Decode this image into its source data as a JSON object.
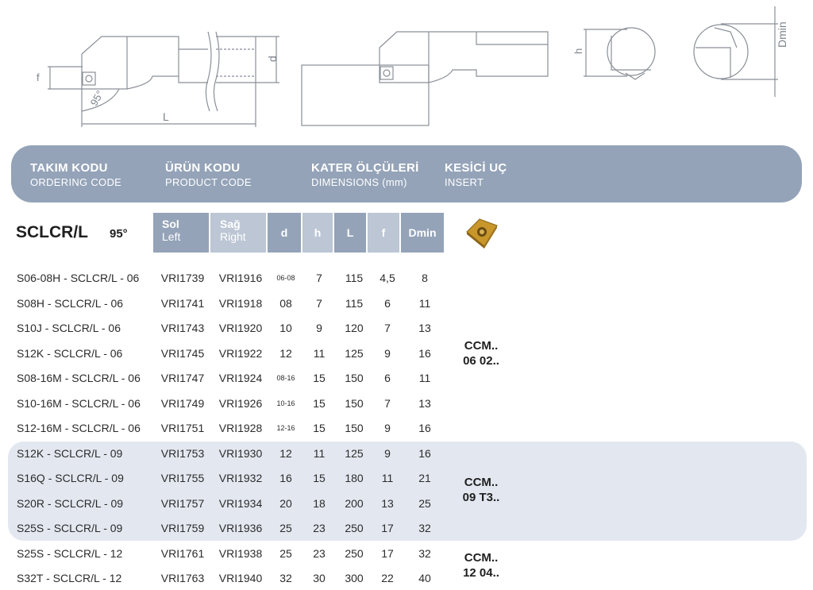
{
  "diagram": {
    "labels": {
      "f": "f",
      "angle": "95°",
      "L": "L",
      "d": "d",
      "h": "h",
      "dmin": "Dmin"
    }
  },
  "header": {
    "cols": [
      {
        "tr": "TAKIM KODU",
        "en": "ORDERING CODE"
      },
      {
        "tr": "ÜRÜN KODU",
        "en": "PRODUCT CODE"
      },
      {
        "tr": "KATER ÖLÇÜLERİ",
        "en": "DIMENSIONS (mm)"
      },
      {
        "tr": "KESİCİ UÇ",
        "en": "INSERT"
      }
    ]
  },
  "table": {
    "model": "SCLCR/L",
    "angle": "95°",
    "columns": {
      "sol": {
        "tr": "Sol",
        "en": "Left"
      },
      "sag": {
        "tr": "Sağ",
        "en": "Right"
      },
      "d": "d",
      "h": "h",
      "L": "L",
      "f": "f",
      "dmin": "Dmin"
    },
    "rows": [
      {
        "code": "S06-08H - SCLCR/L - 06",
        "sol": "VRI1739",
        "sag": "VRI1916",
        "d": "06-08",
        "h": "7",
        "L": "115",
        "f": "4,5",
        "dmin": "8"
      },
      {
        "code": "S08H - SCLCR/L - 06",
        "sol": "VRI1741",
        "sag": "VRI1918",
        "d": "08",
        "h": "7",
        "L": "115",
        "f": "6",
        "dmin": "11"
      },
      {
        "code": "S10J - SCLCR/L - 06",
        "sol": "VRI1743",
        "sag": "VRI1920",
        "d": "10",
        "h": "9",
        "L": "120",
        "f": "7",
        "dmin": "13"
      },
      {
        "code": "S12K - SCLCR/L - 06",
        "sol": "VRI1745",
        "sag": "VRI1922",
        "d": "12",
        "h": "11",
        "L": "125",
        "f": "9",
        "dmin": "16"
      },
      {
        "code": "S08-16M - SCLCR/L - 06",
        "sol": "VRI1747",
        "sag": "VRI1924",
        "d": "08-16",
        "h": "15",
        "L": "150",
        "f": "6",
        "dmin": "11"
      },
      {
        "code": "S10-16M - SCLCR/L - 06",
        "sol": "VRI1749",
        "sag": "VRI1926",
        "d": "10-16",
        "h": "15",
        "L": "150",
        "f": "7",
        "dmin": "13"
      },
      {
        "code": "S12-16M - SCLCR/L - 06",
        "sol": "VRI1751",
        "sag": "VRI1928",
        "d": "12-16",
        "h": "15",
        "L": "150",
        "f": "9",
        "dmin": "16"
      },
      {
        "code": "S12K - SCLCR/L - 09",
        "sol": "VRI1753",
        "sag": "VRI1930",
        "d": "12",
        "h": "11",
        "L": "125",
        "f": "9",
        "dmin": "16"
      },
      {
        "code": "S16Q - SCLCR/L - 09",
        "sol": "VRI1755",
        "sag": "VRI1932",
        "d": "16",
        "h": "15",
        "L": "180",
        "f": "11",
        "dmin": "21"
      },
      {
        "code": "S20R - SCLCR/L - 09",
        "sol": "VRI1757",
        "sag": "VRI1934",
        "d": "20",
        "h": "18",
        "L": "200",
        "f": "13",
        "dmin": "25"
      },
      {
        "code": "S25S - SCLCR/L - 09",
        "sol": "VRI1759",
        "sag": "VRI1936",
        "d": "25",
        "h": "23",
        "L": "250",
        "f": "17",
        "dmin": "32"
      },
      {
        "code": "S25S - SCLCR/L - 12",
        "sol": "VRI1761",
        "sag": "VRI1938",
        "d": "25",
        "h": "23",
        "L": "250",
        "f": "17",
        "dmin": "32"
      },
      {
        "code": "S32T - SCLCR/L - 12",
        "sol": "VRI1763",
        "sag": "VRI1940",
        "d": "32",
        "h": "30",
        "L": "300",
        "f": "22",
        "dmin": "40"
      }
    ],
    "inserts": [
      {
        "line1": "CCM..",
        "line2": "06 02.."
      },
      {
        "line1": "CCM..",
        "line2": "09 T3.."
      },
      {
        "line1": "CCM..",
        "line2": "12 04.."
      }
    ]
  },
  "colors": {
    "band": "#94a3b8",
    "band_light": "#bcc6d4",
    "group_bg": "#e3e8f0",
    "insert_gold": "#c8962a"
  }
}
